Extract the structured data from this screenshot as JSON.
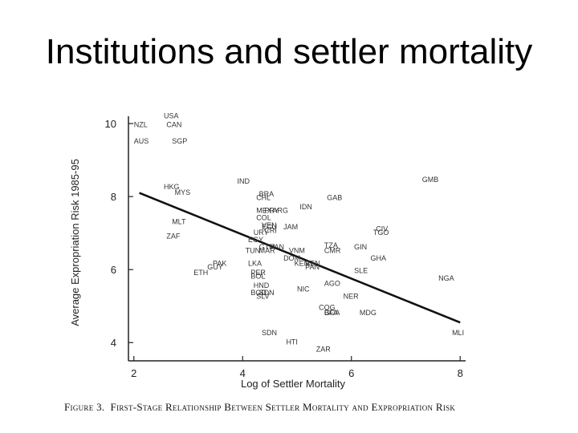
{
  "slide_title": "Institutions and settler mortality",
  "caption": {
    "figure": "Figure 3.",
    "text": "First-Stage Relationship Between Settler Mortality and Expropriation Risk"
  },
  "chart_data": {
    "type": "scatter",
    "xlabel": "Log of Settler Mortality",
    "ylabel": "Average Expropriation Risk 1985-95",
    "xlim": [
      1.9,
      8.1
    ],
    "ylim": [
      3.5,
      10.2
    ],
    "xticks": [
      2,
      4,
      6,
      8
    ],
    "yticks": [
      4,
      6,
      8,
      10
    ],
    "grid": false,
    "fit_line": {
      "x": [
        2.1,
        8.0
      ],
      "y": [
        8.1,
        4.55
      ]
    },
    "points": [
      {
        "label": "USA",
        "x": 2.55,
        "y": 10.15
      },
      {
        "label": "NZL",
        "x": 2.0,
        "y": 9.9
      },
      {
        "label": "CAN",
        "x": 2.6,
        "y": 9.9
      },
      {
        "label": "AUS",
        "x": 2.0,
        "y": 9.45
      },
      {
        "label": "SGP",
        "x": 2.7,
        "y": 9.45
      },
      {
        "label": "HKG",
        "x": 2.55,
        "y": 8.2
      },
      {
        "label": "MYS",
        "x": 2.75,
        "y": 8.05
      },
      {
        "label": "IND",
        "x": 3.9,
        "y": 8.35
      },
      {
        "label": "GMB",
        "x": 7.3,
        "y": 8.4
      },
      {
        "label": "BRA",
        "x": 4.3,
        "y": 8.0
      },
      {
        "label": "CHL",
        "x": 4.25,
        "y": 7.9
      },
      {
        "label": "GAB",
        "x": 5.55,
        "y": 7.9
      },
      {
        "label": "IDN",
        "x": 5.05,
        "y": 7.65
      },
      {
        "label": "MEX",
        "x": 4.25,
        "y": 7.55
      },
      {
        "label": "PRY",
        "x": 4.4,
        "y": 7.55
      },
      {
        "label": "ARG",
        "x": 4.55,
        "y": 7.55
      },
      {
        "label": "COL",
        "x": 4.25,
        "y": 7.35
      },
      {
        "label": "MLT",
        "x": 2.7,
        "y": 7.25
      },
      {
        "label": "VEN",
        "x": 4.35,
        "y": 7.15
      },
      {
        "label": "ECU",
        "x": 4.35,
        "y": 7.1
      },
      {
        "label": "JAM",
        "x": 4.75,
        "y": 7.1
      },
      {
        "label": "URY",
        "x": 4.2,
        "y": 6.95
      },
      {
        "label": "CRI",
        "x": 4.4,
        "y": 7.0
      },
      {
        "label": "CIV",
        "x": 6.45,
        "y": 7.05
      },
      {
        "label": "TGO",
        "x": 6.4,
        "y": 6.95
      },
      {
        "label": "ZAF",
        "x": 2.6,
        "y": 6.85
      },
      {
        "label": "EGY",
        "x": 4.1,
        "y": 6.75
      },
      {
        "label": "TZA",
        "x": 5.5,
        "y": 6.6
      },
      {
        "label": "CMR",
        "x": 5.5,
        "y": 6.45
      },
      {
        "label": "GIN",
        "x": 6.05,
        "y": 6.55
      },
      {
        "label": "GTM",
        "x": 4.3,
        "y": 6.55
      },
      {
        "label": "PAN",
        "x": 4.5,
        "y": 6.55
      },
      {
        "label": "TUN",
        "x": 4.05,
        "y": 6.45
      },
      {
        "label": "MAR",
        "x": 4.3,
        "y": 6.45
      },
      {
        "label": "VNM",
        "x": 4.85,
        "y": 6.45
      },
      {
        "label": "GHA",
        "x": 6.35,
        "y": 6.25
      },
      {
        "label": "DOM",
        "x": 4.75,
        "y": 6.25
      },
      {
        "label": "PAK",
        "x": 3.45,
        "y": 6.1
      },
      {
        "label": "LKA",
        "x": 4.1,
        "y": 6.1
      },
      {
        "label": "KEN",
        "x": 4.95,
        "y": 6.1
      },
      {
        "label": "BEN",
        "x": 5.15,
        "y": 6.1
      },
      {
        "label": "GUY",
        "x": 3.35,
        "y": 6.0
      },
      {
        "label": "PAN",
        "x": 5.15,
        "y": 6.0
      },
      {
        "label": "SLE",
        "x": 6.05,
        "y": 5.9
      },
      {
        "label": "ETH",
        "x": 3.1,
        "y": 5.85
      },
      {
        "label": "PER",
        "x": 4.15,
        "y": 5.85
      },
      {
        "label": "BOL",
        "x": 4.15,
        "y": 5.75
      },
      {
        "label": "NGA",
        "x": 7.6,
        "y": 5.7
      },
      {
        "label": "AGO",
        "x": 5.5,
        "y": 5.55
      },
      {
        "label": "HND",
        "x": 4.2,
        "y": 5.5
      },
      {
        "label": "NIC",
        "x": 5.0,
        "y": 5.4
      },
      {
        "label": "BGD",
        "x": 4.15,
        "y": 5.3
      },
      {
        "label": "SDN",
        "x": 4.3,
        "y": 5.3
      },
      {
        "label": "SLV",
        "x": 4.25,
        "y": 5.2
      },
      {
        "label": "NER",
        "x": 5.85,
        "y": 5.2
      },
      {
        "label": "COG",
        "x": 5.4,
        "y": 4.9
      },
      {
        "label": "GCA",
        "x": 5.5,
        "y": 4.75
      },
      {
        "label": "BFA",
        "x": 5.5,
        "y": 4.75
      },
      {
        "label": "MDG",
        "x": 6.15,
        "y": 4.75
      },
      {
        "label": "SDN",
        "x": 4.35,
        "y": 4.2
      },
      {
        "label": "MLI",
        "x": 7.85,
        "y": 4.2
      },
      {
        "label": "HTI",
        "x": 4.8,
        "y": 3.95
      },
      {
        "label": "ZAR",
        "x": 5.35,
        "y": 3.75
      }
    ]
  }
}
